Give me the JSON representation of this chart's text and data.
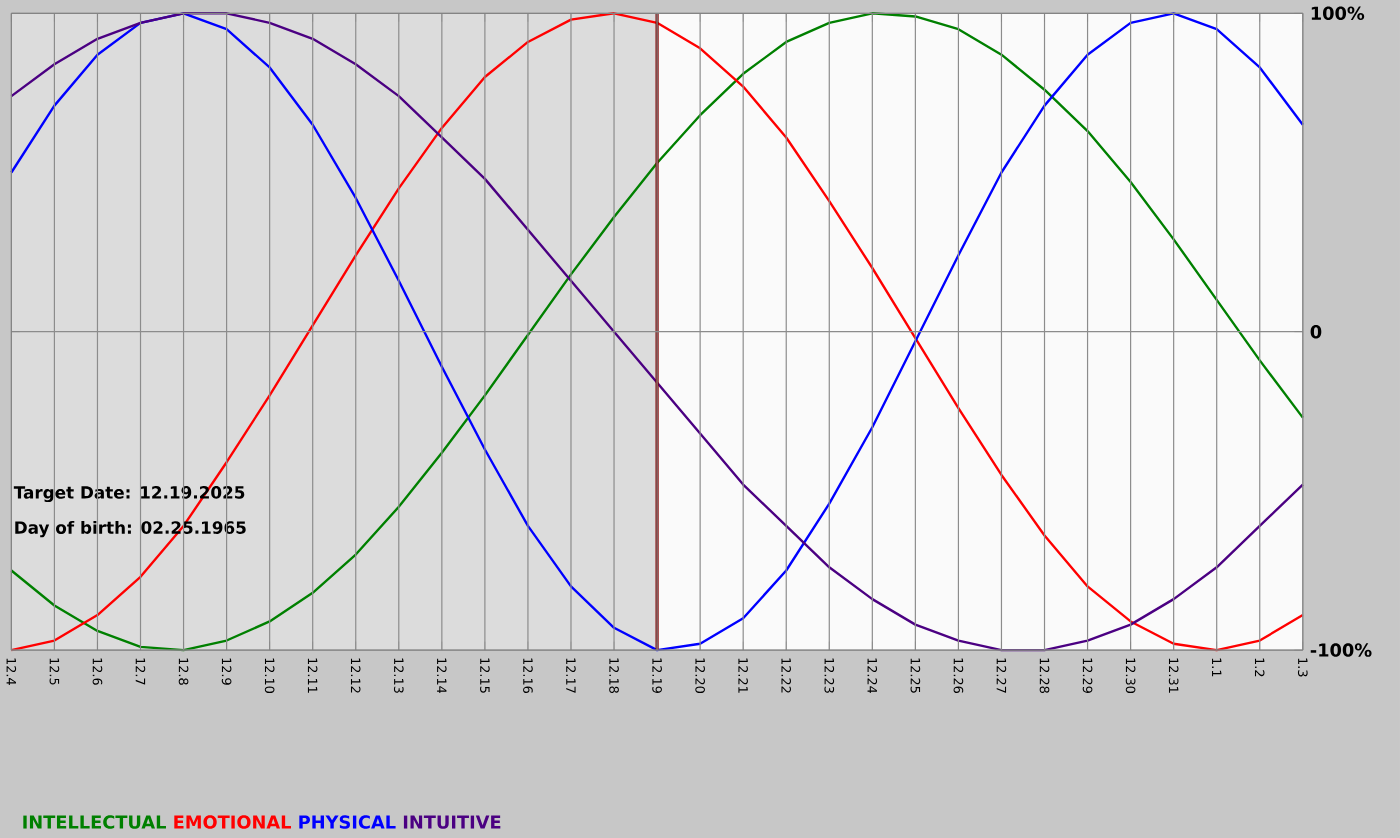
{
  "chart_data": {
    "type": "line",
    "categories": [
      "12.4",
      "12.5",
      "12.6",
      "12.7",
      "12.8",
      "12.9",
      "12.10",
      "12.11",
      "12.12",
      "12.13",
      "12.14",
      "12.15",
      "12.16",
      "12.17",
      "12.18",
      "12.19",
      "12.20",
      "12.21",
      "12.22",
      "12.23",
      "12.24",
      "12.25",
      "12.26",
      "12.27",
      "12.28",
      "12.29",
      "12.30",
      "12.31",
      "1.1",
      "1.2",
      "1.3"
    ],
    "series": [
      {
        "name": "INTELLECTUAL",
        "color": "#008000",
        "values": [
          -75,
          -86,
          -94,
          -99,
          -100,
          -97,
          -91,
          -82,
          -70,
          -55,
          -38,
          -20,
          -1,
          18,
          36,
          53,
          68,
          81,
          91,
          97,
          100,
          99,
          95,
          87,
          76,
          63,
          47,
          29,
          10,
          -9,
          -27
        ]
      },
      {
        "name": "EMOTIONAL",
        "color": "#ff0000",
        "values": [
          -100,
          -97,
          -89,
          -77,
          -61,
          -41,
          -20,
          2,
          24,
          45,
          64,
          80,
          91,
          98,
          100,
          97,
          89,
          77,
          61,
          41,
          20,
          -2,
          -24,
          -45,
          -64,
          -80,
          -91,
          -98,
          -100,
          -97,
          -89
        ]
      },
      {
        "name": "PHYSICAL",
        "color": "#0000ff",
        "values": [
          50,
          71,
          87,
          97,
          100,
          95,
          83,
          65,
          42,
          16,
          -11,
          -37,
          -61,
          -80,
          -93,
          -100,
          -98,
          -90,
          -75,
          -54,
          -30,
          -3,
          24,
          50,
          71,
          87,
          97,
          100,
          95,
          83,
          65
        ]
      },
      {
        "name": "INTUITIVE",
        "color": "#4b0082",
        "values": [
          74,
          84,
          92,
          97,
          100,
          100,
          97,
          92,
          84,
          74,
          61,
          48,
          32,
          16,
          0,
          -16,
          -32,
          -48,
          -61,
          -74,
          -84,
          -92,
          -97,
          -100,
          -100,
          -97,
          -92,
          -84,
          -74,
          -61,
          -48
        ]
      }
    ],
    "ylim": [
      -100,
      100
    ],
    "yticks": [
      {
        "value": -100,
        "label": "-100%"
      },
      {
        "value": 0,
        "label": "0"
      },
      {
        "value": 100,
        "label": "100%"
      }
    ],
    "grid": true,
    "legend": "bottom left",
    "marker": "none",
    "line_style": "solid",
    "ref_lines": [
      {
        "axis": "x",
        "value": "12.19",
        "color": "#800000"
      }
    ],
    "bands": [
      {
        "axis": "x",
        "from": "12.4",
        "to": "12.19",
        "color": "#dcdcdc"
      }
    ],
    "annotations": [
      "Target Date: 12.19.2025",
      "Day of birth: 02.25.1965"
    ]
  }
}
